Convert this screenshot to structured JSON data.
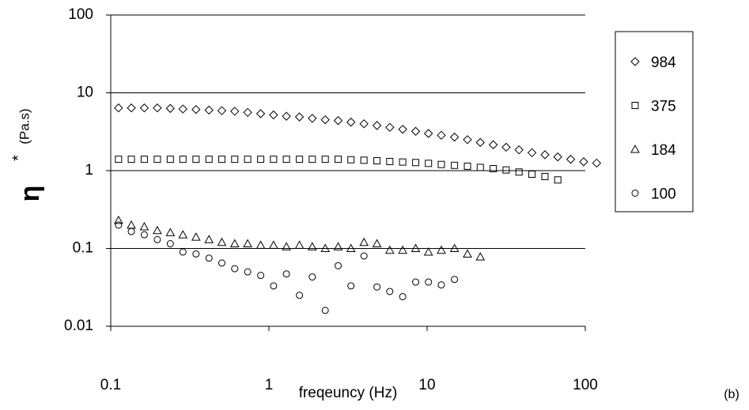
{
  "chart_data": {
    "type": "scatter",
    "ylabel": "η",
    "ylabel_sup": "*",
    "ylabel_unit": "(Pa.s)",
    "xlabel": "freqeuncy (Hz)",
    "annotation": "(b)",
    "xlog": true,
    "ylog": true,
    "grid": true,
    "legend": "right",
    "xlim": [
      0.1,
      100
    ],
    "ylim": [
      0.01,
      100
    ],
    "xticks": [
      0.1,
      1,
      10,
      100
    ],
    "yticks": [
      0.01,
      0.1,
      1,
      10,
      100
    ],
    "series": [
      {
        "name": "984",
        "marker": "diamond",
        "color": "#000000",
        "x": [
          0.112,
          0.135,
          0.163,
          0.197,
          0.238,
          0.286,
          0.346,
          0.418,
          0.504,
          0.608,
          0.734,
          0.887,
          1.07,
          1.29,
          1.56,
          1.88,
          2.27,
          2.74,
          3.3,
          3.99,
          4.82,
          5.81,
          7.01,
          8.47,
          10.2,
          12.3,
          14.9,
          18,
          21.7,
          26.2,
          31.6,
          38.1,
          46,
          55.6,
          67,
          80.9,
          97.7,
          118
        ],
        "values": [
          6.4,
          6.4,
          6.4,
          6.4,
          6.3,
          6.2,
          6.1,
          6,
          5.9,
          5.8,
          5.6,
          5.4,
          5.2,
          5,
          4.9,
          4.7,
          4.5,
          4.4,
          4.2,
          4,
          3.8,
          3.6,
          3.4,
          3.2,
          3,
          2.85,
          2.7,
          2.5,
          2.3,
          2.15,
          2,
          1.85,
          1.7,
          1.6,
          1.5,
          1.4,
          1.3,
          1.25
        ]
      },
      {
        "name": "375",
        "marker": "square",
        "color": "#000000",
        "x": [
          0.112,
          0.135,
          0.163,
          0.197,
          0.238,
          0.286,
          0.346,
          0.418,
          0.504,
          0.608,
          0.734,
          0.887,
          1.07,
          1.29,
          1.56,
          1.88,
          2.27,
          2.74,
          3.3,
          3.99,
          4.82,
          5.81,
          7.01,
          8.47,
          10.2,
          12.3,
          14.9,
          18,
          21.7,
          26.2,
          31.6,
          38.1,
          46,
          55.6,
          67
        ],
        "values": [
          1.4,
          1.4,
          1.4,
          1.4,
          1.4,
          1.4,
          1.4,
          1.4,
          1.4,
          1.4,
          1.4,
          1.4,
          1.4,
          1.4,
          1.4,
          1.4,
          1.4,
          1.4,
          1.38,
          1.36,
          1.34,
          1.31,
          1.29,
          1.27,
          1.24,
          1.2,
          1.17,
          1.14,
          1.1,
          1.06,
          1.02,
          0.96,
          0.9,
          0.84,
          0.76
        ]
      },
      {
        "name": "184",
        "marker": "triangle",
        "color": "#000000",
        "x": [
          0.112,
          0.135,
          0.163,
          0.197,
          0.238,
          0.286,
          0.346,
          0.418,
          0.504,
          0.608,
          0.734,
          0.887,
          1.07,
          1.29,
          1.56,
          1.88,
          2.27,
          2.74,
          3.3,
          3.99,
          4.82,
          5.81,
          7.01,
          8.47,
          10.2,
          12.3,
          14.9,
          18,
          21.7
        ],
        "values": [
          0.23,
          0.2,
          0.19,
          0.17,
          0.16,
          0.15,
          0.14,
          0.13,
          0.12,
          0.115,
          0.115,
          0.11,
          0.11,
          0.105,
          0.11,
          0.105,
          0.1,
          0.105,
          0.1,
          0.12,
          0.115,
          0.095,
          0.095,
          0.1,
          0.09,
          0.095,
          0.1,
          0.085,
          0.078
        ]
      },
      {
        "name": "100",
        "marker": "circle",
        "color": "#000000",
        "x": [
          0.112,
          0.135,
          0.163,
          0.197,
          0.238,
          0.286,
          0.346,
          0.418,
          0.504,
          0.608,
          0.734,
          0.887,
          1.07,
          1.29,
          1.56,
          1.88,
          2.27,
          2.74,
          3.3,
          3.99,
          4.82,
          5.81,
          7.01,
          8.47,
          10.2,
          12.3,
          14.9
        ],
        "values": [
          0.2,
          0.165,
          0.15,
          0.13,
          0.115,
          0.09,
          0.085,
          0.075,
          0.065,
          0.055,
          0.05,
          0.045,
          0.033,
          0.047,
          0.025,
          0.043,
          0.016,
          0.06,
          0.033,
          0.08,
          0.032,
          0.028,
          0.024,
          0.037,
          0.037,
          0.034,
          0.04
        ]
      }
    ]
  }
}
